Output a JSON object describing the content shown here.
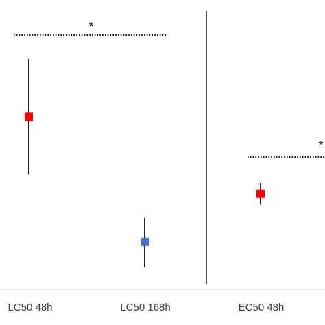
{
  "chart_data": {
    "type": "scatter",
    "title": "",
    "xlabel": "",
    "ylabel": "",
    "grid": false,
    "legend": "none",
    "categories": [
      "LC50 48h",
      "LC50 168h",
      "EC50 48h"
    ],
    "points": [
      {
        "category": "LC50 48h",
        "value": 6.6,
        "low": 4.2,
        "high": 9.0,
        "color": "#ff0000"
      },
      {
        "category": "LC50 168h",
        "value": 1.4,
        "low": 0.35,
        "high": 2.4,
        "color": "#4472c4"
      },
      {
        "category": "EC50 48h",
        "value": 3.4,
        "low": 2.95,
        "high": 3.85,
        "color": "#ff0000"
      }
    ],
    "annotations": [
      {
        "text": "*",
        "between": [
          "LC50 48h",
          "LC50 168h"
        ],
        "line": "dotted"
      },
      {
        "text": "*",
        "between": [
          "EC50 48h",
          "EC50 48h+"
        ],
        "line": "dotted"
      }
    ]
  }
}
